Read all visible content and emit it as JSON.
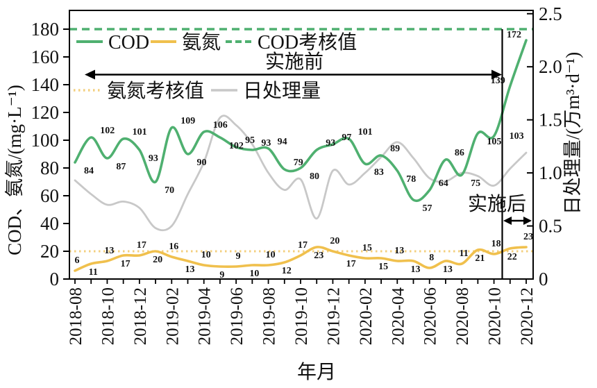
{
  "figure": {
    "xlabel": "年月",
    "ylabel_left": "COD、氨氮/(mg·L⁻¹)",
    "ylabel_right": "日处理量/(万m³·d⁻¹)",
    "period_before_label": "实施前",
    "period_after_label": "实施后"
  },
  "legend": {
    "cod": "COD",
    "ammonia": "氨氮",
    "cod_limit": "COD考核值",
    "ammonia_limit": "氨氮考核值",
    "treatment": "日处理量"
  },
  "colors": {
    "cod": "#4fb070",
    "ammonia": "#f0c04d",
    "ammonia_limit": "#f3cf7e",
    "treatment": "#c8c8c8",
    "axis": "#000000"
  },
  "chart_data": {
    "type": "line",
    "x": [
      "2018-08",
      "2018-09",
      "2018-10",
      "2018-11",
      "2018-12",
      "2019-01",
      "2019-02",
      "2019-03",
      "2019-04",
      "2019-05",
      "2019-06",
      "2019-07",
      "2019-08",
      "2019-09",
      "2019-10",
      "2019-11",
      "2019-12",
      "2020-01",
      "2020-02",
      "2020-03",
      "2020-04",
      "2020-05",
      "2020-06",
      "2020-07",
      "2020-08",
      "2020-09",
      "2020-10",
      "2020-11",
      "2020-12"
    ],
    "x_tick_labels": [
      "2018-08",
      "2018-10",
      "2018-12",
      "2019-02",
      "2019-04",
      "2019-06",
      "2019-08",
      "2019-10",
      "2019-12",
      "2020-02",
      "2020-04",
      "2020-06",
      "2020-08",
      "2020-10",
      "2020-12"
    ],
    "xlabel": "年月",
    "left_axis": {
      "label": "COD、氨氮/(mg·L⁻¹)",
      "ticks": [
        0,
        20,
        40,
        60,
        80,
        100,
        120,
        140,
        160,
        180
      ],
      "range": [
        0,
        193.5
      ]
    },
    "right_axis": {
      "label": "日处理量/(万m³·d⁻¹)",
      "ticks": [
        "0",
        "0.5",
        "1.0",
        "1.5",
        "2.0",
        "2.5"
      ],
      "range": [
        0,
        2.5
      ]
    },
    "grid": false,
    "legend_position": "top-left-inside",
    "series": [
      {
        "name": "COD",
        "axis": "left",
        "style": "solid",
        "color": "#4fb070",
        "values": [
          84,
          102,
          87,
          101,
          93,
          70,
          109,
          90,
          106,
          102,
          95,
          93,
          94,
          79,
          80,
          93,
          97,
          101,
          83,
          89,
          78,
          57,
          64,
          86,
          75,
          105,
          103,
          139,
          172
        ],
        "label_side": [
          "b",
          "a",
          "b",
          "a",
          "b",
          "b",
          "a",
          "b",
          "a",
          "b",
          "a",
          "a",
          "a",
          "a",
          "b",
          "a",
          "a",
          "a",
          "b",
          "a",
          "b",
          "b",
          "a",
          "a",
          "b",
          "b",
          "r",
          "L",
          "L"
        ]
      },
      {
        "name": "氨氮",
        "axis": "left",
        "style": "solid",
        "color": "#f0c04d",
        "values": [
          6,
          11,
          13,
          17,
          17,
          20,
          16,
          13,
          10,
          9,
          9,
          10,
          10,
          12,
          17,
          23,
          20,
          17,
          15,
          15,
          13,
          13,
          8,
          13,
          11,
          21,
          18,
          22,
          23
        ],
        "label_side": [
          "a",
          "b",
          "a",
          "b",
          "a",
          "b",
          "a",
          "b",
          "a",
          "b",
          "a",
          "b",
          "a",
          "b",
          "a",
          "b",
          "a",
          "b",
          "a",
          "b",
          "a",
          "b",
          "a",
          "b",
          "a",
          "b",
          "a",
          "b",
          "a"
        ]
      },
      {
        "name": "日处理量",
        "axis": "right",
        "style": "solid",
        "color": "#c8c8c8",
        "values": [
          0.93,
          0.8,
          0.7,
          0.73,
          0.67,
          0.48,
          0.5,
          0.8,
          1.1,
          1.52,
          1.45,
          1.27,
          1.0,
          0.84,
          0.94,
          0.57,
          1.02,
          0.89,
          1.0,
          1.15,
          1.29,
          1.14,
          0.95,
          0.92,
          1.0,
          0.97,
          0.88,
          1.04,
          1.19
        ]
      }
    ],
    "reference_lines": [
      {
        "name": "COD考核值",
        "axis": "left",
        "value": 180,
        "style": "dashed",
        "color": "#4fb070"
      },
      {
        "name": "氨氮考核值",
        "axis": "left",
        "value": 20,
        "style": "dotted",
        "color": "#f3cf7e"
      }
    ],
    "divider_between": [
      "2020-10",
      "2020-11"
    ],
    "annotations": [
      {
        "text": "实施前",
        "range": [
          "2018-08",
          "2020-10"
        ]
      },
      {
        "text": "实施后",
        "range": [
          "2020-11",
          "2020-12"
        ]
      }
    ]
  }
}
